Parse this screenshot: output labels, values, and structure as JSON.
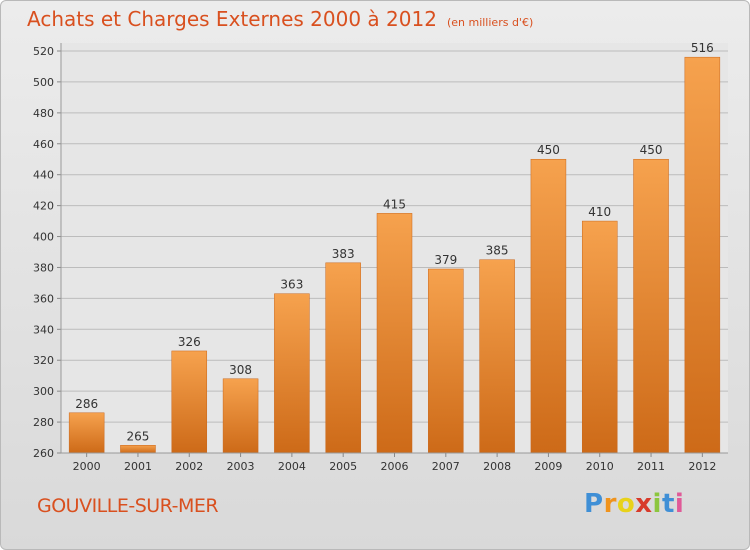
{
  "chart_data": {
    "type": "bar",
    "title": "Achats et Charges Externes 2000 à 2012",
    "subtitle": "(en milliers d'€)",
    "categories": [
      "2000",
      "2001",
      "2002",
      "2003",
      "2004",
      "2005",
      "2006",
      "2007",
      "2008",
      "2009",
      "2010",
      "2011",
      "2012"
    ],
    "values": [
      286,
      265,
      326,
      308,
      363,
      383,
      415,
      379,
      385,
      450,
      410,
      450,
      516
    ],
    "ylim": [
      260,
      520
    ],
    "yticks": [
      260,
      280,
      300,
      320,
      340,
      360,
      380,
      400,
      420,
      440,
      460,
      480,
      500,
      520
    ],
    "grid": true,
    "bar_color": "#f08a2c"
  },
  "footer": {
    "city": "GOUVILLE-SUR-MER"
  },
  "logo": {
    "letters": [
      "P",
      "r",
      "o",
      "x",
      "i",
      "t",
      "i"
    ],
    "colors": [
      "#3f8fd6",
      "#f0931c",
      "#e8d21a",
      "#d83a2a",
      "#8cc63e",
      "#3f8fd6",
      "#e05a98"
    ]
  }
}
